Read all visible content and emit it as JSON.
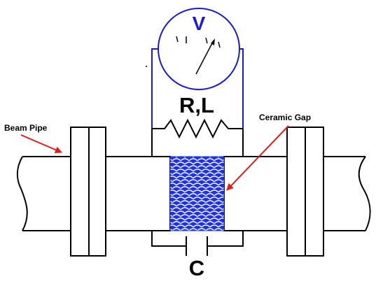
{
  "labels": {
    "voltmeter": "V",
    "impedance": "R,L",
    "ceramic_gap": "Ceramic Gap",
    "beam_pipe": "Beam Pipe",
    "capacitor": "C"
  },
  "colors": {
    "circuit": "#1a1ad2",
    "arrow": "#e41a1a",
    "ceramic": "#1e32e6",
    "outline": "#000000"
  }
}
